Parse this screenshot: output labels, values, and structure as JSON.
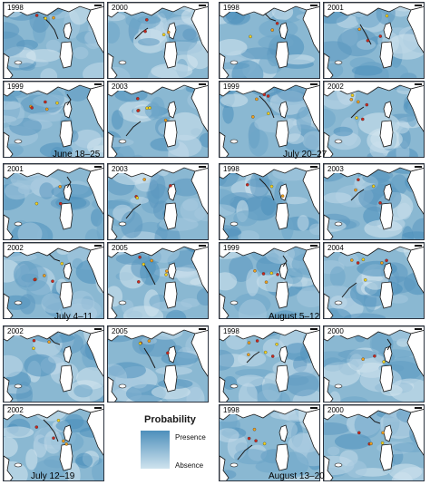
{
  "groups": [
    {
      "period": "June 18–25",
      "years": [
        "1998",
        "2000",
        "1999",
        "2003"
      ]
    },
    {
      "period": "July 20–27",
      "years": [
        "1998",
        "2001",
        "1999",
        "2002"
      ]
    },
    {
      "period": "July 4–11",
      "years": [
        "2001",
        "2003",
        "2002",
        "2005"
      ]
    },
    {
      "period": "August 5–12",
      "years": [
        "1998",
        "2003",
        "1999",
        "2004"
      ]
    },
    {
      "period": "July 12–19",
      "years": [
        "2002",
        "2005",
        "2002"
      ]
    },
    {
      "period": "August 13–20",
      "years": [
        "1998",
        "2000",
        "1998",
        "2000"
      ]
    }
  ],
  "legend": {
    "title": "Probability",
    "high": "Presence",
    "low": "Absence"
  },
  "colors": {
    "presence": "#4d8fbb",
    "absence": "#cfe3ee",
    "land": "#ffffff",
    "track_red": "#c8281e",
    "track_orange": "#f0a01e",
    "track_yellow": "#f2d21e",
    "track_line": "#1a1a1a"
  }
}
